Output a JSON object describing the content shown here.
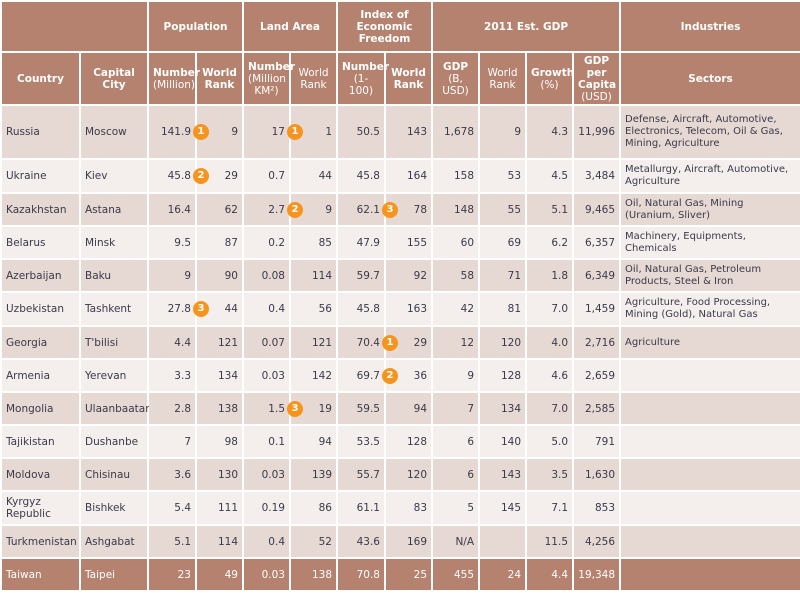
{
  "header": {
    "groups": {
      "population": "Population",
      "land_area": "Land Area",
      "freedom": "Index of Economic Freedom",
      "gdp": "2011 Est. GDP",
      "industries": "Industries"
    },
    "cols": {
      "country": "Country",
      "capital": "Capital City",
      "pop_num": "Number",
      "pop_num_unit": "(Million)",
      "pop_rank": "World Rank",
      "land_num": "Number",
      "land_num_unit": "(Million KM²)",
      "land_rank": "World Rank",
      "idx_num": "Number",
      "idx_num_unit": "(1-100)",
      "idx_rank": "World Rank",
      "gdp": "GDP",
      "gdp_unit": "(B, USD)",
      "gdp_rank": "World Rank",
      "growth": "Growth",
      "growth_unit": "(%)",
      "per_capita": "GDP per Capita",
      "per_capita_unit": "(USD)",
      "sectors": "Sectors"
    }
  },
  "badge_color": "#f7941d",
  "rows": [
    {
      "country": "Russia",
      "capital": "Moscow",
      "pop": "141.9",
      "pop_badge": "1",
      "pop_rank": "9",
      "land": "17",
      "land_badge": "1",
      "land_rank": "1",
      "idx": "50.5",
      "idx_badge": "",
      "idx_rank": "143",
      "gdp": "1,678",
      "gdp_rank": "9",
      "growth": "4.3",
      "per_capita": "11,996",
      "sectors": "Defense, Aircraft, Automotive, Electronics, Telecom, Oil & Gas, Mining, Agriculture"
    },
    {
      "country": "Ukraine",
      "capital": "Kiev",
      "pop": "45.8",
      "pop_badge": "2",
      "pop_rank": "29",
      "land": "0.7",
      "land_badge": "",
      "land_rank": "44",
      "idx": "45.8",
      "idx_badge": "",
      "idx_rank": "164",
      "gdp": "158",
      "gdp_rank": "53",
      "growth": "4.5",
      "per_capita": "3,484",
      "sectors": "Metallurgy, Aircraft, Automotive, Agriculture"
    },
    {
      "country": "Kazakhstan",
      "capital": "Astana",
      "pop": "16.4",
      "pop_badge": "",
      "pop_rank": "62",
      "land": "2.7",
      "land_badge": "2",
      "land_rank": "9",
      "idx": "62.1",
      "idx_badge": "3",
      "idx_rank": "78",
      "gdp": "148",
      "gdp_rank": "55",
      "growth": "5.1",
      "per_capita": "9,465",
      "sectors": "Oil,  Natural Gas, Mining (Uranium, Sliver)"
    },
    {
      "country": "Belarus",
      "capital": "Minsk",
      "pop": "9.5",
      "pop_badge": "",
      "pop_rank": "87",
      "land": "0.2",
      "land_badge": "",
      "land_rank": "85",
      "idx": "47.9",
      "idx_badge": "",
      "idx_rank": "155",
      "gdp": "60",
      "gdp_rank": "69",
      "growth": "6.2",
      "per_capita": "6,357",
      "sectors": "Machinery, Equipments, Chemicals"
    },
    {
      "country": "Azerbaijan",
      "capital": "Baku",
      "pop": "9",
      "pop_badge": "",
      "pop_rank": "90",
      "land": "0.08",
      "land_badge": "",
      "land_rank": "114",
      "idx": "59.7",
      "idx_badge": "",
      "idx_rank": "92",
      "gdp": "58",
      "gdp_rank": "71",
      "growth": "1.8",
      "per_capita": "6,349",
      "sectors": "Oil, Natural Gas, Petroleum Products, Steel & Iron"
    },
    {
      "country": "Uzbekistan",
      "capital": "Tashkent",
      "pop": "27.8",
      "pop_badge": "3",
      "pop_rank": "44",
      "land": "0.4",
      "land_badge": "",
      "land_rank": "56",
      "idx": "45.8",
      "idx_badge": "",
      "idx_rank": "163",
      "gdp": "42",
      "gdp_rank": "81",
      "growth": "7.0",
      "per_capita": "1,459",
      "sectors": "Agriculture, Food Processing, Mining (Gold), Natural Gas"
    },
    {
      "country": "Georgia",
      "capital": "T'bilisi",
      "pop": "4.4",
      "pop_badge": "",
      "pop_rank": "121",
      "land": "0.07",
      "land_badge": "",
      "land_rank": "121",
      "idx": "70.4",
      "idx_badge": "1",
      "idx_rank": "29",
      "gdp": "12",
      "gdp_rank": "120",
      "growth": "4.0",
      "per_capita": "2,716",
      "sectors": "Agriculture"
    },
    {
      "country": "Armenia",
      "capital": "Yerevan",
      "pop": "3.3",
      "pop_badge": "",
      "pop_rank": "134",
      "land": "0.03",
      "land_badge": "",
      "land_rank": "142",
      "idx": "69.7",
      "idx_badge": "2",
      "idx_rank": "36",
      "gdp": "9",
      "gdp_rank": "128",
      "growth": "4.6",
      "per_capita": "2,659",
      "sectors": ""
    },
    {
      "country": "Mongolia",
      "capital": "Ulaanbaatar",
      "pop": "2.8",
      "pop_badge": "",
      "pop_rank": "138",
      "land": "1.5",
      "land_badge": "3",
      "land_rank": "19",
      "idx": "59.5",
      "idx_badge": "",
      "idx_rank": "94",
      "gdp": "7",
      "gdp_rank": "134",
      "growth": "7.0",
      "per_capita": "2,585",
      "sectors": ""
    },
    {
      "country": "Tajikistan",
      "capital": "Dushanbe",
      "pop": "7",
      "pop_badge": "",
      "pop_rank": "98",
      "land": "0.1",
      "land_badge": "",
      "land_rank": "94",
      "idx": "53.5",
      "idx_badge": "",
      "idx_rank": "128",
      "gdp": "6",
      "gdp_rank": "140",
      "growth": "5.0",
      "per_capita": "791",
      "sectors": ""
    },
    {
      "country": "Moldova",
      "capital": "Chisinau",
      "pop": "3.6",
      "pop_badge": "",
      "pop_rank": "130",
      "land": "0.03",
      "land_badge": "",
      "land_rank": "139",
      "idx": "55.7",
      "idx_badge": "",
      "idx_rank": "120",
      "gdp": "6",
      "gdp_rank": "143",
      "growth": "3.5",
      "per_capita": "1,630",
      "sectors": ""
    },
    {
      "country": "Kyrgyz Republic",
      "capital": "Bishkek",
      "pop": "5.4",
      "pop_badge": "",
      "pop_rank": "111",
      "land": "0.19",
      "land_badge": "",
      "land_rank": "86",
      "idx": "61.1",
      "idx_badge": "",
      "idx_rank": "83",
      "gdp": "5",
      "gdp_rank": "145",
      "growth": "7.1",
      "per_capita": "853",
      "sectors": ""
    },
    {
      "country": "Turkmenistan",
      "capital": "Ashgabat",
      "pop": "5.1",
      "pop_badge": "",
      "pop_rank": "114",
      "land": "0.4",
      "land_badge": "",
      "land_rank": "52",
      "idx": "43.6",
      "idx_badge": "",
      "idx_rank": "169",
      "gdp": "N/A",
      "gdp_rank": "",
      "growth": "11.5",
      "per_capita": "4,256",
      "sectors": ""
    },
    {
      "country": "Taiwan",
      "capital": "Taipei",
      "pop": "23",
      "pop_badge": "",
      "pop_rank": "49",
      "land": "0.03",
      "land_badge": "",
      "land_rank": "138",
      "idx": "70.8",
      "idx_badge": "",
      "idx_rank": "25",
      "gdp": "455",
      "gdp_rank": "24",
      "growth": "4.4",
      "per_capita": "19,348",
      "sectors": ""
    }
  ]
}
